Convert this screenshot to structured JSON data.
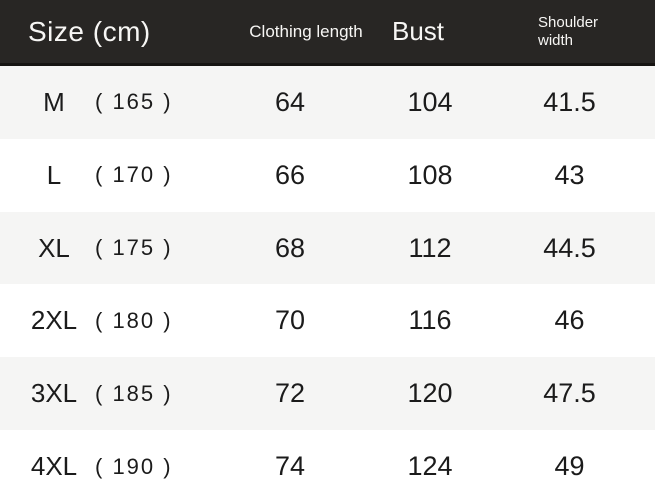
{
  "colors": {
    "header_bg": "#282624",
    "header_text": "#f7f6f4",
    "row_alt_bg": "#f5f5f4",
    "row_bg": "#ffffff",
    "body_text": "#1b1b1b"
  },
  "chart_data": {
    "type": "table",
    "title": "Size (cm)",
    "unit": "cm",
    "columns": [
      "Size (cm)",
      "Clothing length",
      "Bust",
      "Shoulder width"
    ],
    "rows": [
      {
        "size_code": "M",
        "height_label": "( 165 )",
        "clothing_length": "64",
        "bust": "104",
        "shoulder_width": "41.5"
      },
      {
        "size_code": "L",
        "height_label": "( 170 )",
        "clothing_length": "66",
        "bust": "108",
        "shoulder_width": "43"
      },
      {
        "size_code": "XL",
        "height_label": "( 175 )",
        "clothing_length": "68",
        "bust": "112",
        "shoulder_width": "44.5"
      },
      {
        "size_code": "2XL",
        "height_label": "( 180 )",
        "clothing_length": "70",
        "bust": "116",
        "shoulder_width": "46"
      },
      {
        "size_code": "3XL",
        "height_label": "( 185 )",
        "clothing_length": "72",
        "bust": "120",
        "shoulder_width": "47.5"
      },
      {
        "size_code": "4XL",
        "height_label": "( 190 )",
        "clothing_length": "74",
        "bust": "124",
        "shoulder_width": "49"
      }
    ]
  }
}
